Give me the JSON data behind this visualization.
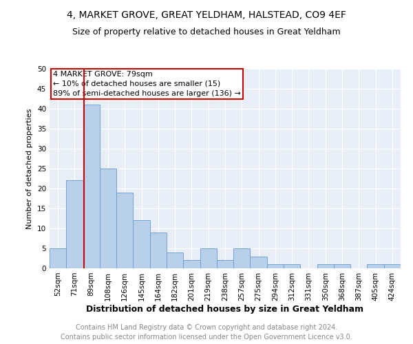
{
  "title": "4, MARKET GROVE, GREAT YELDHAM, HALSTEAD, CO9 4EF",
  "subtitle": "Size of property relative to detached houses in Great Yeldham",
  "xlabel": "Distribution of detached houses by size in Great Yeldham",
  "ylabel": "Number of detached properties",
  "categories": [
    "52sqm",
    "71sqm",
    "89sqm",
    "108sqm",
    "126sqm",
    "145sqm",
    "164sqm",
    "182sqm",
    "201sqm",
    "219sqm",
    "238sqm",
    "257sqm",
    "275sqm",
    "294sqm",
    "312sqm",
    "331sqm",
    "350sqm",
    "368sqm",
    "387sqm",
    "405sqm",
    "424sqm"
  ],
  "values": [
    5,
    22,
    41,
    25,
    19,
    12,
    9,
    4,
    2,
    5,
    2,
    5,
    3,
    1,
    1,
    0,
    1,
    1,
    0,
    1,
    1
  ],
  "bar_color": "#b8d0ea",
  "bar_edge_color": "#6699cc",
  "vline_color": "#cc0000",
  "vline_x_index": 1.55,
  "ylim": [
    0,
    50
  ],
  "yticks": [
    0,
    5,
    10,
    15,
    20,
    25,
    30,
    35,
    40,
    45,
    50
  ],
  "background_color": "#e8eef8",
  "annotation_marker": "4 MARKET GROVE: 79sqm",
  "annotation_line1": "← 10% of detached houses are smaller (15)",
  "annotation_line2": "89% of semi-detached houses are larger (136) →",
  "annotation_box_facecolor": "#ffffff",
  "annotation_box_edgecolor": "#cc0000",
  "footer_line1": "Contains HM Land Registry data © Crown copyright and database right 2024.",
  "footer_line2": "Contains public sector information licensed under the Open Government Licence v3.0.",
  "title_fontsize": 10,
  "subtitle_fontsize": 9,
  "xlabel_fontsize": 9,
  "ylabel_fontsize": 8,
  "tick_fontsize": 7.5,
  "annotation_fontsize": 8,
  "footer_fontsize": 7
}
